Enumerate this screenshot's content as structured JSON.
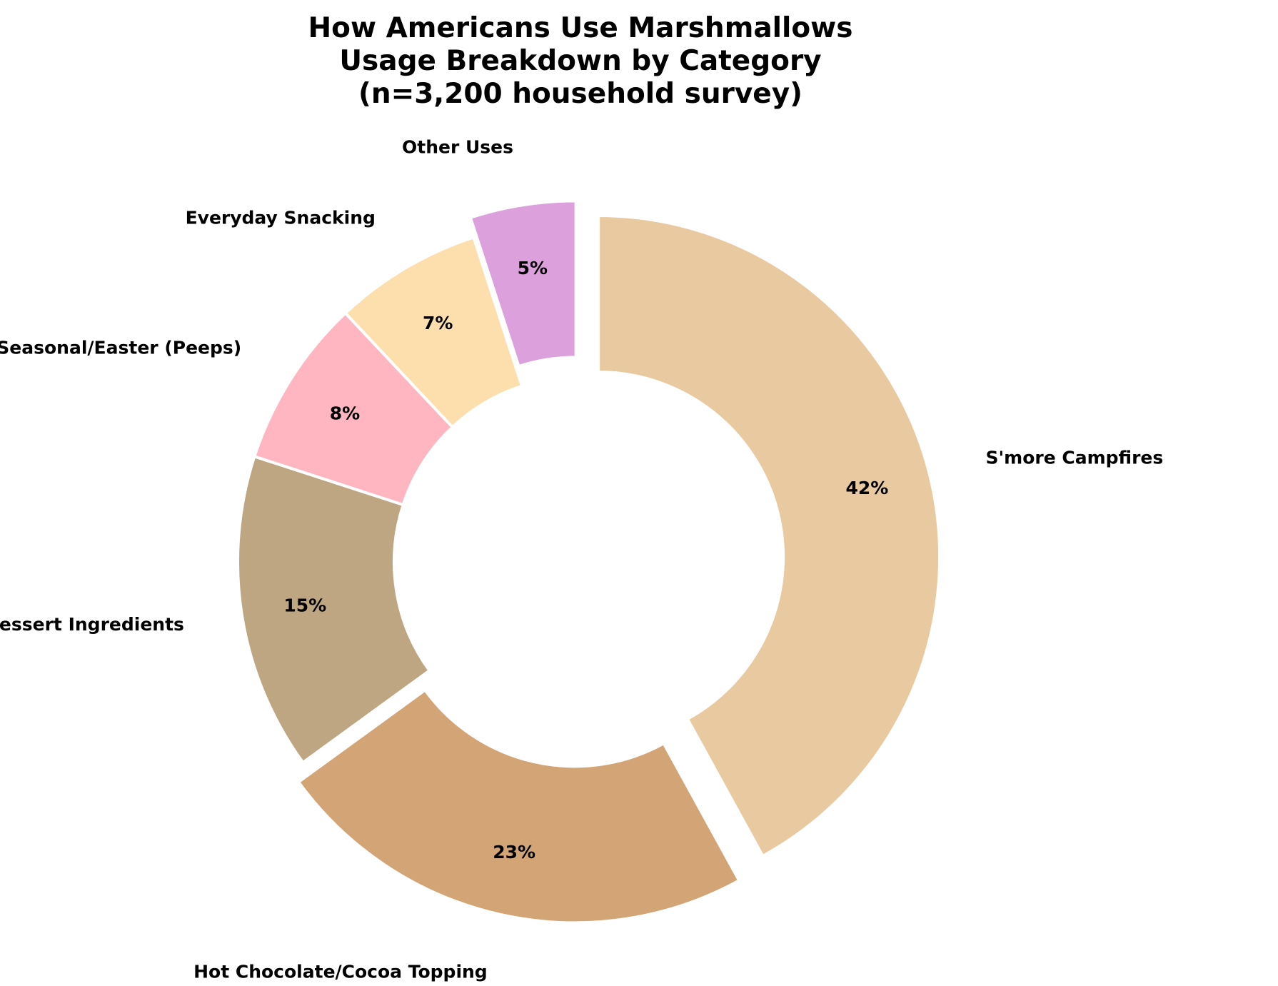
{
  "chart_data": {
    "type": "pie",
    "style": "donut",
    "title_lines": [
      "How Americans Use Marshmallows",
      "Usage Breakdown by Category",
      "(n=3,200 household survey)"
    ],
    "start_angle_deg": 90,
    "direction": "clockwise",
    "slices": [
      {
        "label": "S'more Campfires",
        "value": 42,
        "pct_label": "42%",
        "color": "#E8C9A0",
        "exploded": true
      },
      {
        "label": "Hot Chocolate/Cocoa Topping",
        "value": 23,
        "pct_label": "23%",
        "color": "#D2A476",
        "exploded": true
      },
      {
        "label": "Bakery/Dessert Ingredients",
        "value": 15,
        "pct_label": "15%",
        "color": "#BFA683",
        "exploded": false
      },
      {
        "label": "Seasonal/Easter (Peeps)",
        "value": 8,
        "pct_label": "8%",
        "color": "#FFB6C1",
        "exploded": false
      },
      {
        "label": "Everyday Snacking",
        "value": 7,
        "pct_label": "7%",
        "color": "#FDDEAD",
        "exploded": false
      },
      {
        "label": "Other Uses",
        "value": 5,
        "pct_label": "5%",
        "color": "#DCA0DC",
        "exploded": true
      }
    ],
    "legend": "none"
  }
}
